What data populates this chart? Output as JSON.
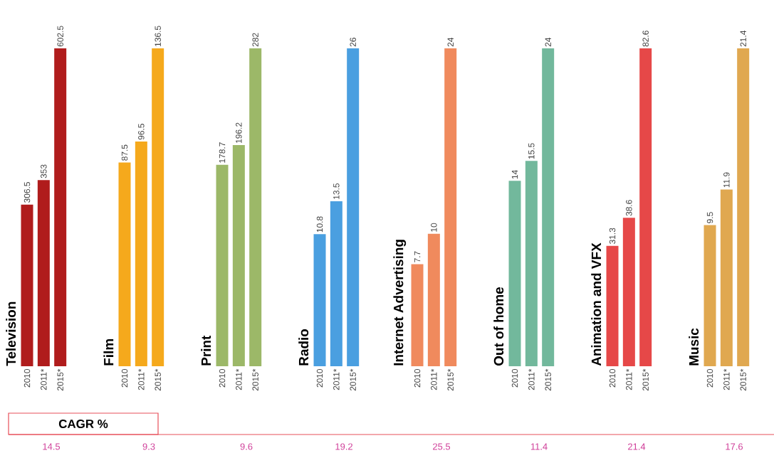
{
  "chart_data": [
    {
      "type": "bar",
      "title": "Television",
      "categories": [
        "2010",
        "2011*",
        "2015*"
      ],
      "values": [
        306.5,
        353,
        602.5
      ],
      "color": "#b01c1c",
      "data_labels": true,
      "annotations": [
        "CAGR %",
        "14.5"
      ]
    },
    {
      "type": "bar",
      "title": "Film",
      "categories": [
        "2010",
        "2011*",
        "2015*"
      ],
      "values": [
        87.5,
        96.5,
        136.5
      ],
      "color": "#f5a91c",
      "data_labels": true,
      "annotations": [
        "9.3"
      ]
    },
    {
      "type": "bar",
      "title": "Print",
      "categories": [
        "2010",
        "2011*",
        "2015*"
      ],
      "values": [
        178.7,
        196.2,
        282
      ],
      "color": "#9cb868",
      "data_labels": true,
      "annotations": [
        "9.6"
      ]
    },
    {
      "type": "bar",
      "title": "Radio",
      "categories": [
        "2010",
        "2011*",
        "2015*"
      ],
      "values": [
        10.8,
        13.5,
        26
      ],
      "color": "#4a9fe0",
      "data_labels": true,
      "annotations": [
        "19.2"
      ]
    },
    {
      "type": "bar",
      "title": "Internet Advertising",
      "categories": [
        "2010",
        "2011*",
        "2015*"
      ],
      "values": [
        7.7,
        10,
        24
      ],
      "color": "#f08a5d",
      "data_labels": true,
      "annotations": [
        "25.5"
      ]
    },
    {
      "type": "bar",
      "title": "Out of home",
      "categories": [
        "2010",
        "2011*",
        "2015*"
      ],
      "values": [
        14,
        15.5,
        24
      ],
      "color": "#72b89c",
      "data_labels": true,
      "annotations": [
        "11.4"
      ]
    },
    {
      "type": "bar",
      "title": "Animation and VFX",
      "categories": [
        "2010",
        "2011*",
        "2015*"
      ],
      "values": [
        31.3,
        38.6,
        82.6
      ],
      "color": "#e64848",
      "data_labels": true,
      "annotations": [
        "21.4"
      ]
    },
    {
      "type": "bar",
      "title": "Music",
      "categories": [
        "2010",
        "2011*",
        "2015*"
      ],
      "values": [
        9.5,
        11.9,
        21.4
      ],
      "color": "#e0a850",
      "data_labels": true,
      "annotations": [
        "17.6"
      ]
    }
  ]
}
